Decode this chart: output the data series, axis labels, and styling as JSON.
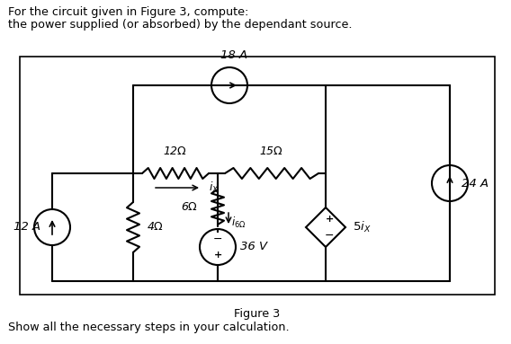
{
  "title_line1": "For the circuit given in Figure 3, compute:",
  "title_line2": "the power supplied (or absorbed) by the dependant source.",
  "figure_caption": "Figure 3",
  "footer": "Show all the necessary steps in your calculation.",
  "labels": {
    "18A": "18 A",
    "12ohm": "12 Ω",
    "15ohm": "15 Ω",
    "6ohm": "6 Ω",
    "4ohm": "4 Ω",
    "ix": "i_X",
    "i6ohm": "i_{6Ω}",
    "36V": "36 V",
    "5ix": "5i_X",
    "12A": "12 A",
    "24A": "24 A"
  },
  "colors": {
    "wire": "#000000",
    "component": "#000000",
    "background": "#ffffff",
    "box": "#000000",
    "text": "#000000"
  },
  "figsize": [
    5.68,
    3.83
  ],
  "dpi": 100
}
